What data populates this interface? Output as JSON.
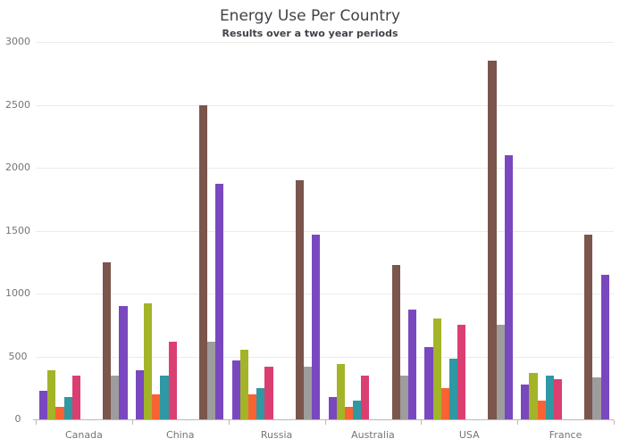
{
  "chart": {
    "title": "Energy Use Per Country",
    "subtitle": "Results over a two year periods"
  },
  "chart_data": {
    "type": "bar",
    "title": "Energy Use Per Country",
    "subtitle": "Results over a two year periods",
    "categories": [
      "Canada",
      "China",
      "Russia",
      "Australia",
      "USA",
      "France"
    ],
    "series": [
      {
        "name": "purple-a",
        "color": "#7A48BE",
        "group": 1,
        "values": [
          230,
          390,
          470,
          180,
          575,
          280
        ]
      },
      {
        "name": "olive",
        "color": "#A3B428",
        "group": 1,
        "values": [
          390,
          920,
          550,
          440,
          800,
          370
        ]
      },
      {
        "name": "orange",
        "color": "#F96333",
        "group": 1,
        "values": [
          100,
          200,
          200,
          100,
          250,
          150
        ]
      },
      {
        "name": "teal",
        "color": "#2F98A2",
        "group": 1,
        "values": [
          180,
          350,
          250,
          150,
          480,
          350
        ]
      },
      {
        "name": "pink",
        "color": "#DB3F71",
        "group": 1,
        "values": [
          350,
          620,
          420,
          350,
          750,
          320
        ]
      },
      {
        "name": "brown",
        "color": "#7A564C",
        "group": 2,
        "values": [
          1250,
          2500,
          1900,
          1230,
          2850,
          1470
        ]
      },
      {
        "name": "gray",
        "color": "#9E9C9C",
        "group": 2,
        "values": [
          350,
          620,
          420,
          350,
          750,
          330
        ]
      },
      {
        "name": "purple-b",
        "color": "#7A48BE",
        "group": 2,
        "values": [
          900,
          1870,
          1470,
          870,
          2100,
          1150
        ]
      }
    ],
    "ylim": [
      0,
      3000
    ],
    "yticks": [
      0,
      500,
      1000,
      1500,
      2000,
      2500,
      3000
    ],
    "grid": true,
    "legend": "none",
    "axis_colors": {
      "grid": "#ebebeb",
      "axis": "#b8b8b8",
      "label": "#757575",
      "title": "#404247"
    }
  }
}
